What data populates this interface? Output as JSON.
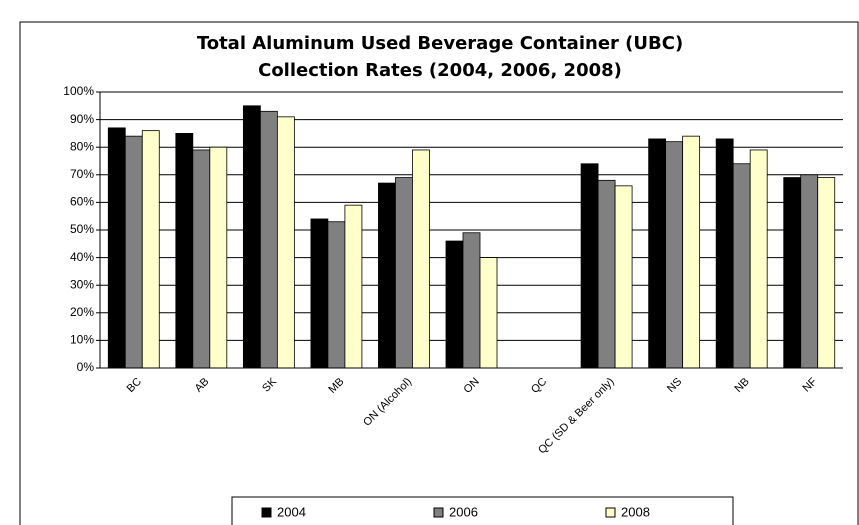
{
  "chart_data": {
    "type": "bar",
    "title": [
      "Total Aluminum Used Beverage Container (UBC)",
      "Collection Rates  (2004, 2006, 2008)"
    ],
    "categories": [
      "BC",
      "AB",
      "SK",
      "MB",
      "ON (Alcohol)",
      "ON",
      "QC",
      "QC (SD & Beer only)",
      "NS",
      "NB",
      "NF"
    ],
    "series": [
      {
        "name": "2004",
        "color": "#000000",
        "values": [
          87,
          85,
          95,
          54,
          67,
          46,
          null,
          74,
          83,
          83,
          69
        ]
      },
      {
        "name": "2006",
        "color": "#808080",
        "values": [
          84,
          79,
          93,
          53,
          69,
          49,
          null,
          68,
          82,
          74,
          70
        ]
      },
      {
        "name": "2008",
        "color": "#ffffcc",
        "values": [
          86,
          80,
          91,
          59,
          79,
          40,
          null,
          66,
          84,
          79,
          69
        ]
      }
    ],
    "ylim": [
      0,
      100
    ],
    "yticks": [
      {
        "value": 0,
        "label": "0%"
      },
      {
        "value": 10,
        "label": "10%"
      },
      {
        "value": 20,
        "label": "20%"
      },
      {
        "value": 30,
        "label": "30%"
      },
      {
        "value": 40,
        "label": "40%"
      },
      {
        "value": 50,
        "label": "50%"
      },
      {
        "value": 60,
        "label": "60%"
      },
      {
        "value": 70,
        "label": "70%"
      },
      {
        "value": 80,
        "label": "80%"
      },
      {
        "value": 90,
        "label": "90%"
      },
      {
        "value": 100,
        "label": "100%"
      }
    ],
    "grid": true,
    "legend": "bottom"
  }
}
